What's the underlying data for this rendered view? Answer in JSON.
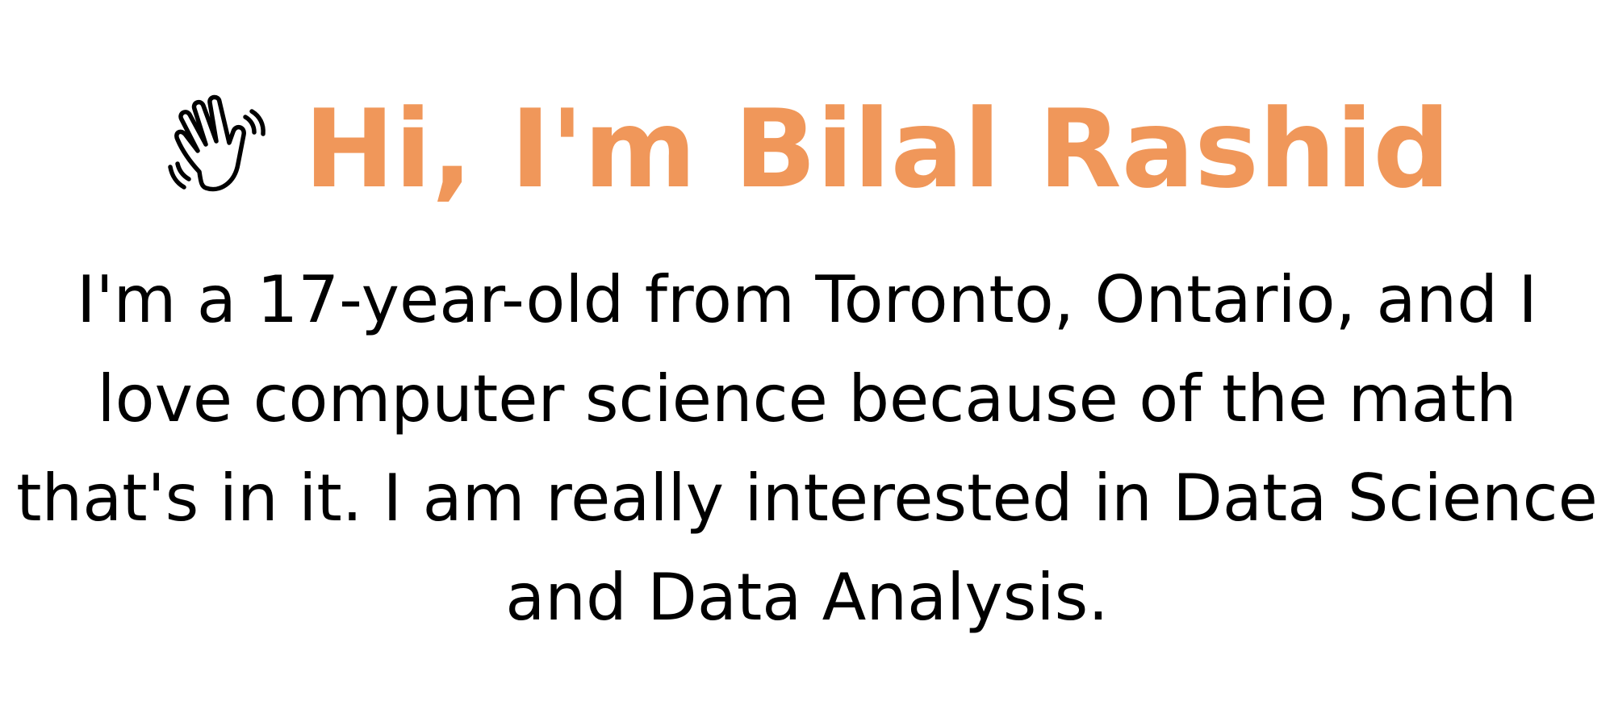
{
  "hero": {
    "icon": "waving-hand-icon",
    "title": "Hi, I'm Bilal Rashid",
    "intro_text": "I'm a 17-year-old from Toronto, Ontario, and I love computer science because of the math that's in it. I am really interested in Data Science and Data Analysis."
  },
  "colors": {
    "title": "#f0975a",
    "text": "#000000",
    "background": "#ffffff"
  }
}
